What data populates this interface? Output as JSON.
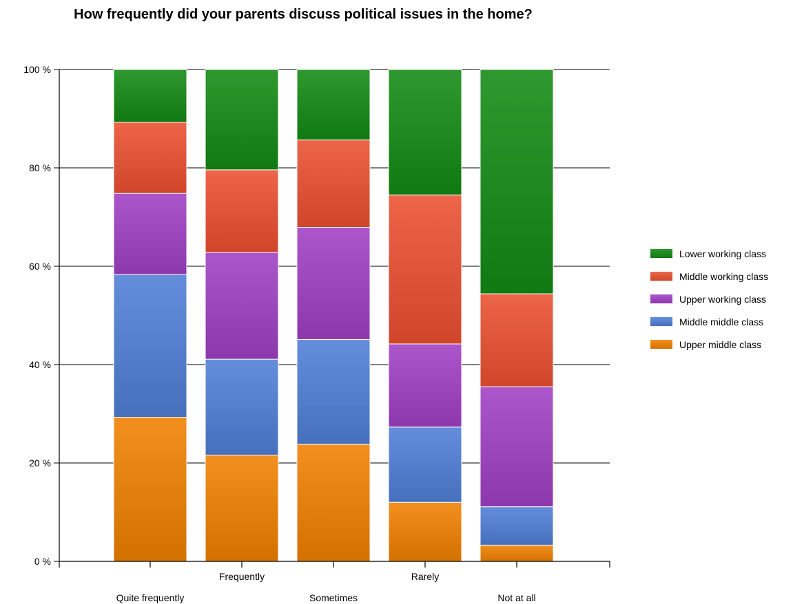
{
  "chart_data": {
    "type": "bar",
    "stacked": true,
    "percent_stacked": true,
    "title": "How frequently did your parents discuss political issues in the home?",
    "xlabel": "",
    "ylabel": "",
    "ylim": [
      0,
      100
    ],
    "y_ticks": [
      "0 %",
      "20 %",
      "40 %",
      "60 %",
      "80 %",
      "100 %"
    ],
    "grid": true,
    "legend_position": "right",
    "categories": [
      "Quite frequently",
      "Frequently",
      "Sometimes",
      "Rarely",
      "Not at all"
    ],
    "series": [
      {
        "name": "Upper middle class",
        "color": "#f08000",
        "values": [
          29.3,
          21.6,
          23.8,
          12.0,
          3.3
        ]
      },
      {
        "name": "Middle middle class",
        "color": "#4f7fd6",
        "values": [
          29.0,
          19.5,
          21.3,
          15.3,
          7.8
        ]
      },
      {
        "name": "Upper working class",
        "color": "#a03fc4",
        "values": [
          16.5,
          21.7,
          22.8,
          16.9,
          24.4
        ]
      },
      {
        "name": "Middle working class",
        "color": "#eb5030",
        "values": [
          14.5,
          16.8,
          17.8,
          30.3,
          18.9
        ]
      },
      {
        "name": "Lower working class",
        "color": "#138a13",
        "values": [
          10.7,
          20.4,
          14.3,
          25.5,
          45.6
        ]
      }
    ]
  }
}
